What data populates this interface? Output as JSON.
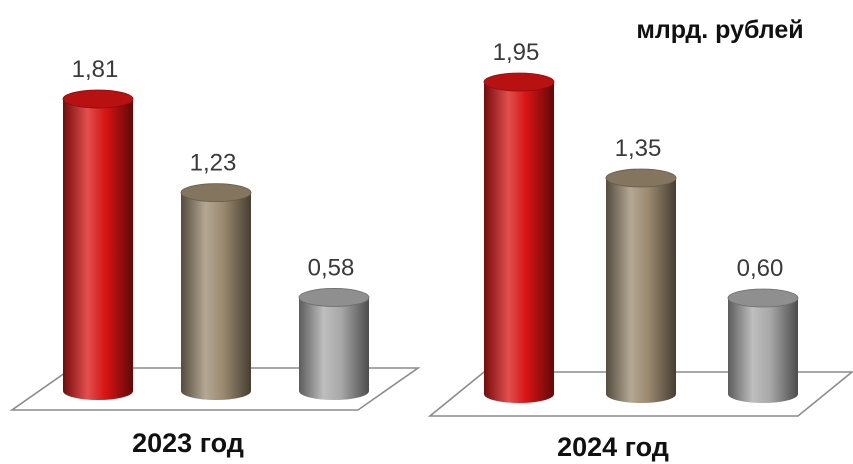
{
  "chart_data": [
    {
      "type": "bar",
      "title": "",
      "unit_label": "",
      "category_label": "2023 год",
      "series": [
        {
          "value": 1.81,
          "value_label": "1,81",
          "color": "#d81414"
        },
        {
          "value": 1.23,
          "value_label": "1,23",
          "color": "#9b8a70"
        },
        {
          "value": 0.58,
          "value_label": "0,58",
          "color": "#a8a8a8"
        }
      ],
      "ylim": [
        0,
        2.0
      ],
      "grid": false,
      "legend": "none"
    },
    {
      "type": "bar",
      "title": "",
      "unit_label": "млрд. рублей",
      "category_label": "2024 год",
      "series": [
        {
          "value": 1.95,
          "value_label": "1,95",
          "color": "#d81414"
        },
        {
          "value": 1.35,
          "value_label": "1,35",
          "color": "#9b8a70"
        },
        {
          "value": 0.6,
          "value_label": "0,60",
          "color": "#a8a8a8"
        }
      ],
      "ylim": [
        0,
        2.0
      ],
      "grid": false,
      "legend": "none"
    }
  ]
}
